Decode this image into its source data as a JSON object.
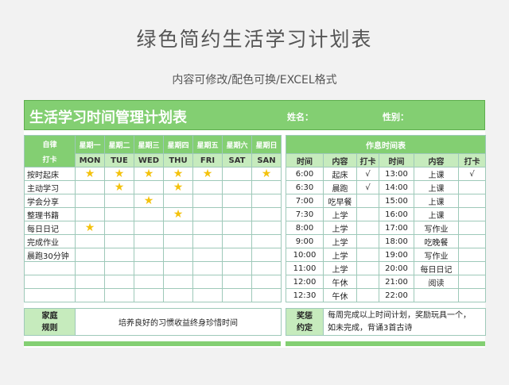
{
  "header": {
    "title": "绿色简约生活学习计划表",
    "subtitle": "内容可修改/配色可换/EXCEL格式"
  },
  "banner": {
    "title": "生活学习时间管理计划表",
    "name_label": "姓名：",
    "gender_label": "性别："
  },
  "left_table": {
    "corner_label_1": "自律",
    "corner_label_2": "打卡",
    "days": [
      {
        "cn": "星期一",
        "code": "MON"
      },
      {
        "cn": "星期二",
        "code": "TUE"
      },
      {
        "cn": "星期三",
        "code": "WED"
      },
      {
        "cn": "星期四",
        "code": "THU"
      },
      {
        "cn": "星期五",
        "code": "FRI"
      },
      {
        "cn": "星期六",
        "code": "SAT"
      },
      {
        "cn": "星期日",
        "code": "SAN"
      }
    ],
    "star_glyph": "★",
    "star_color": "#f4c20d",
    "habits": [
      {
        "name": "按时起床",
        "checked": [
          true,
          true,
          true,
          true,
          true,
          false,
          true
        ]
      },
      {
        "name": "主动学习",
        "checked": [
          false,
          true,
          false,
          true,
          false,
          false,
          false
        ]
      },
      {
        "name": "学会分享",
        "checked": [
          false,
          false,
          true,
          false,
          false,
          false,
          false
        ]
      },
      {
        "name": "整理书籍",
        "checked": [
          false,
          false,
          false,
          true,
          false,
          false,
          false
        ]
      },
      {
        "name": "每日日记",
        "checked": [
          true,
          false,
          false,
          false,
          false,
          false,
          false
        ]
      },
      {
        "name": "完成作业",
        "checked": [
          false,
          false,
          false,
          false,
          false,
          false,
          false
        ]
      },
      {
        "name": "晨跑30分钟",
        "checked": [
          false,
          false,
          false,
          false,
          false,
          false,
          false
        ]
      },
      {
        "name": "",
        "checked": [
          false,
          false,
          false,
          false,
          false,
          false,
          false
        ]
      },
      {
        "name": "",
        "checked": [
          false,
          false,
          false,
          false,
          false,
          false,
          false
        ]
      },
      {
        "name": "",
        "checked": [
          false,
          false,
          false,
          false,
          false,
          false,
          false
        ]
      }
    ]
  },
  "right_table": {
    "title": "作息时间表",
    "columns": [
      "时间",
      "内容",
      "打卡",
      "时间",
      "内容",
      "打卡"
    ],
    "rows": [
      [
        "6:00",
        "起床",
        "√",
        "13:00",
        "上课",
        "√"
      ],
      [
        "6:30",
        "晨跑",
        "√",
        "14:00",
        "上课",
        ""
      ],
      [
        "7:00",
        "吃早餐",
        "",
        "15:00",
        "上课",
        ""
      ],
      [
        "7:30",
        "上学",
        "",
        "16:00",
        "上课",
        ""
      ],
      [
        "8:00",
        "上学",
        "",
        "17:00",
        "写作业",
        ""
      ],
      [
        "9:00",
        "上学",
        "",
        "18:00",
        "吃晚餐",
        ""
      ],
      [
        "10:00",
        "上学",
        "",
        "19:00",
        "写作业",
        ""
      ],
      [
        "11:00",
        "上学",
        "",
        "20:00",
        "每日日记",
        ""
      ],
      [
        "12:00",
        "午休",
        "",
        "21:00",
        "阅读",
        ""
      ],
      [
        "12:30",
        "午休",
        "",
        "22:00",
        "",
        ""
      ]
    ]
  },
  "footer": {
    "family_label_1": "家庭",
    "family_label_2": "规则",
    "family_rule": "培养良好的习惯收益终身珍惜时间",
    "reward_label_1": "奖惩",
    "reward_label_2": "约定",
    "reward_line_1": "每周完成以上时间计划，奖励玩具一个，",
    "reward_line_2": "如未完成，背诵3首古诗"
  },
  "colors": {
    "accent": "#83cf72",
    "accent_light": "#c6ebbd",
    "grid": "#9ec9b9",
    "background": "#f2f2f2"
  }
}
